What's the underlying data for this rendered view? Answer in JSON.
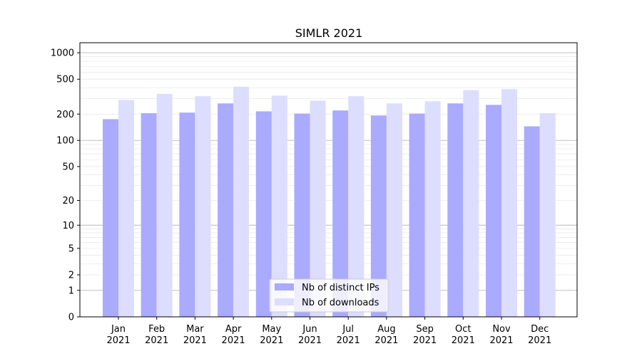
{
  "chart_data": {
    "type": "bar",
    "title": "SIMLR 2021",
    "xlabel": "",
    "ylabel": "",
    "yscale": "log(1+y)",
    "ylim": [
      0,
      1300
    ],
    "yticks": [
      0,
      1,
      2,
      5,
      10,
      20,
      50,
      100,
      200,
      500,
      1000
    ],
    "grid": true,
    "legend_position": "bottom-center",
    "categories": [
      [
        "Jan",
        "2021"
      ],
      [
        "Feb",
        "2021"
      ],
      [
        "Mar",
        "2021"
      ],
      [
        "Apr",
        "2021"
      ],
      [
        "May",
        "2021"
      ],
      [
        "Jun",
        "2021"
      ],
      [
        "Jul",
        "2021"
      ],
      [
        "Aug",
        "2021"
      ],
      [
        "Sep",
        "2021"
      ],
      [
        "Oct",
        "2021"
      ],
      [
        "Nov",
        "2021"
      ],
      [
        "Dec",
        "2021"
      ]
    ],
    "series": [
      {
        "name": "Nb of distinct IPs",
        "color": "#aaaaff",
        "values": [
          175,
          205,
          208,
          265,
          215,
          203,
          220,
          193,
          203,
          265,
          255,
          145
        ]
      },
      {
        "name": "Nb of downloads",
        "color": "#ddddff",
        "values": [
          290,
          340,
          320,
          410,
          325,
          285,
          320,
          265,
          280,
          375,
          385,
          205
        ]
      }
    ]
  }
}
